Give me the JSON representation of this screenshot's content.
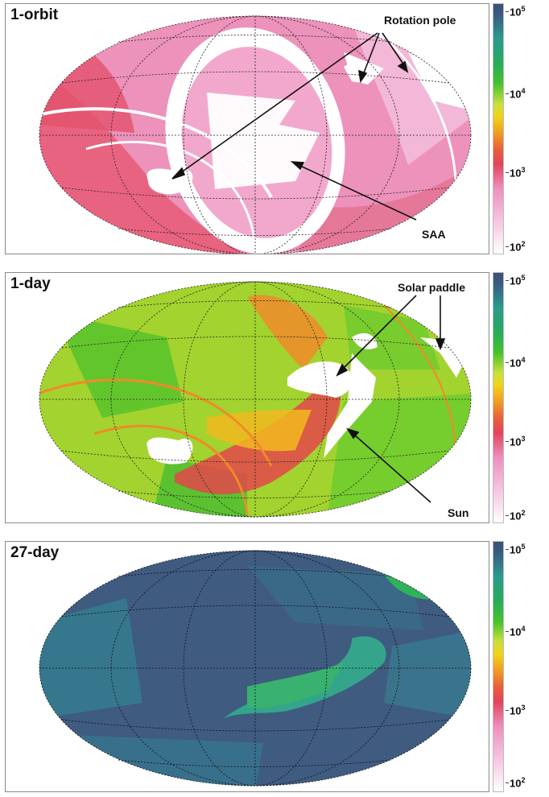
{
  "panels": [
    {
      "title": "1-orbit",
      "annotations": {
        "rotation_pole": "Rotation pole",
        "saa": "SAA"
      },
      "base_color": "#e98cb6"
    },
    {
      "title": "1-day",
      "annotations": {
        "solar_paddle": "Solar paddle",
        "sun": "Sun"
      },
      "base_color": "#9ad12e"
    },
    {
      "title": "27-day",
      "annotations": {},
      "base_color": "#3c5c80"
    }
  ],
  "colorbar": {
    "labels": [
      "10",
      "10",
      "10",
      "10"
    ],
    "exponents": [
      "5",
      "4",
      "3",
      "2"
    ],
    "colors": [
      "#3e5175",
      "#2fb04a",
      "#e2445a",
      "#ffffff"
    ]
  }
}
